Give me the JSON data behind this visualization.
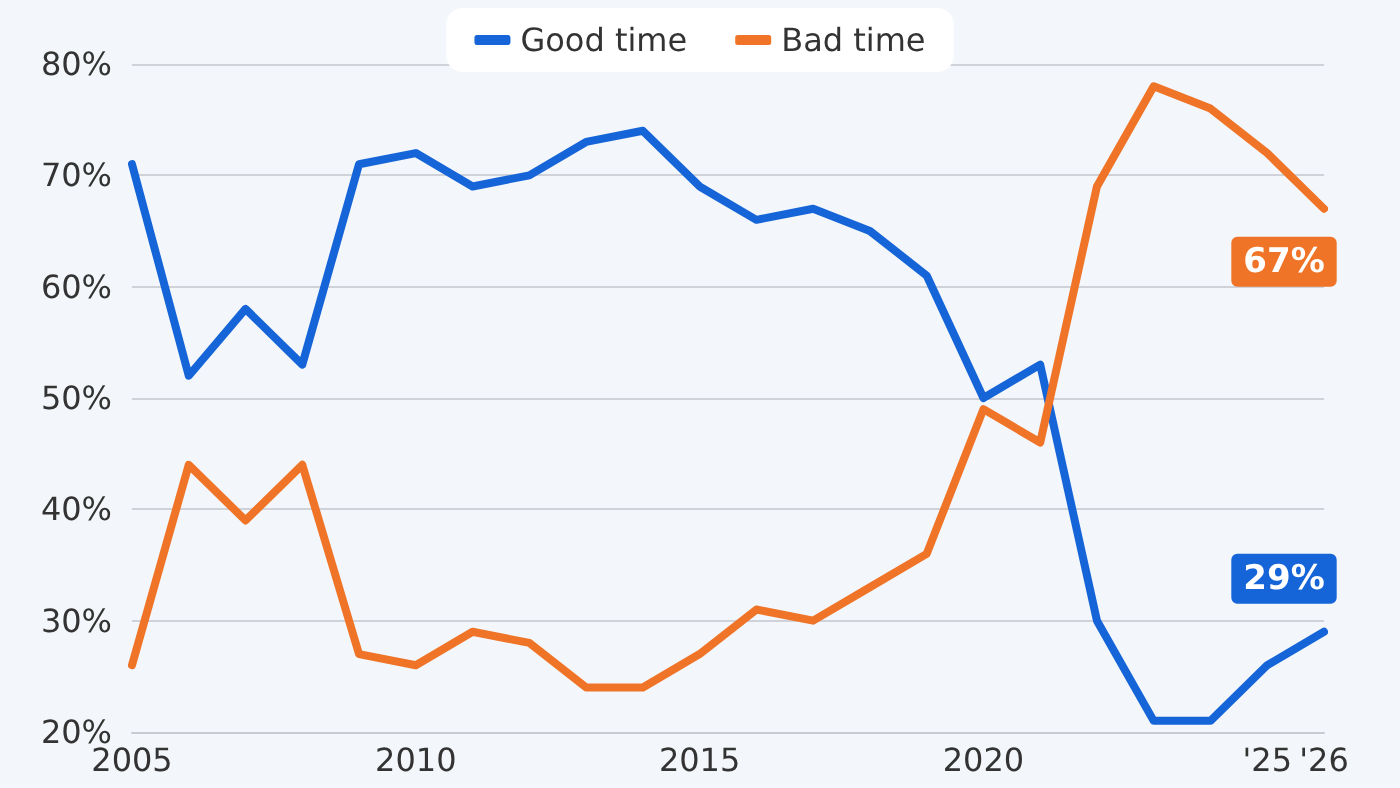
{
  "chart_data": {
    "type": "line",
    "x": [
      2005,
      2006,
      2007,
      2008,
      2009,
      2010,
      2011,
      2012,
      2013,
      2014,
      2015,
      2016,
      2017,
      2018,
      2019,
      2020,
      2021,
      2022,
      2023,
      2024,
      2025,
      2026
    ],
    "series": [
      {
        "name": "Good time",
        "color": "#1565d8",
        "values": [
          71,
          52,
          58,
          53,
          71,
          72,
          69,
          70,
          73,
          74,
          69,
          66,
          67,
          65,
          61,
          50,
          53,
          30,
          21,
          21,
          26,
          29
        ],
        "value_labels": [
          null,
          null,
          null,
          null,
          null,
          null,
          null,
          null,
          null,
          null,
          null,
          null,
          null,
          null,
          null,
          null,
          null,
          null,
          null,
          null,
          null,
          "29%"
        ]
      },
      {
        "name": "Bad time",
        "color": "#f07427",
        "values": [
          26,
          44,
          39,
          44,
          27,
          26,
          29,
          28,
          24,
          24,
          27,
          31,
          30,
          33,
          36,
          49,
          46,
          69,
          78,
          76,
          72,
          67
        ],
        "value_labels": [
          null,
          null,
          null,
          null,
          null,
          null,
          null,
          null,
          null,
          null,
          null,
          null,
          null,
          null,
          null,
          null,
          null,
          null,
          null,
          null,
          null,
          "67%"
        ]
      }
    ],
    "xlim": [
      2005,
      2026
    ],
    "xticks": [
      2005,
      2010,
      2015,
      2020,
      {
        "value": 2025,
        "label": "'25"
      },
      {
        "value": 2026,
        "label": "'26"
      }
    ],
    "ylim": [
      20,
      80
    ],
    "yticks": [
      {
        "value": 20,
        "label": "20%"
      },
      {
        "value": 30,
        "label": "30%"
      },
      {
        "value": 40,
        "label": "40%"
      },
      {
        "value": 50,
        "label": "50%"
      },
      {
        "value": 60,
        "label": "60%"
      },
      {
        "value": 70,
        "label": "70%"
      },
      {
        "value": 80,
        "label": "80%"
      }
    ],
    "grid": "y",
    "legend": "top"
  }
}
